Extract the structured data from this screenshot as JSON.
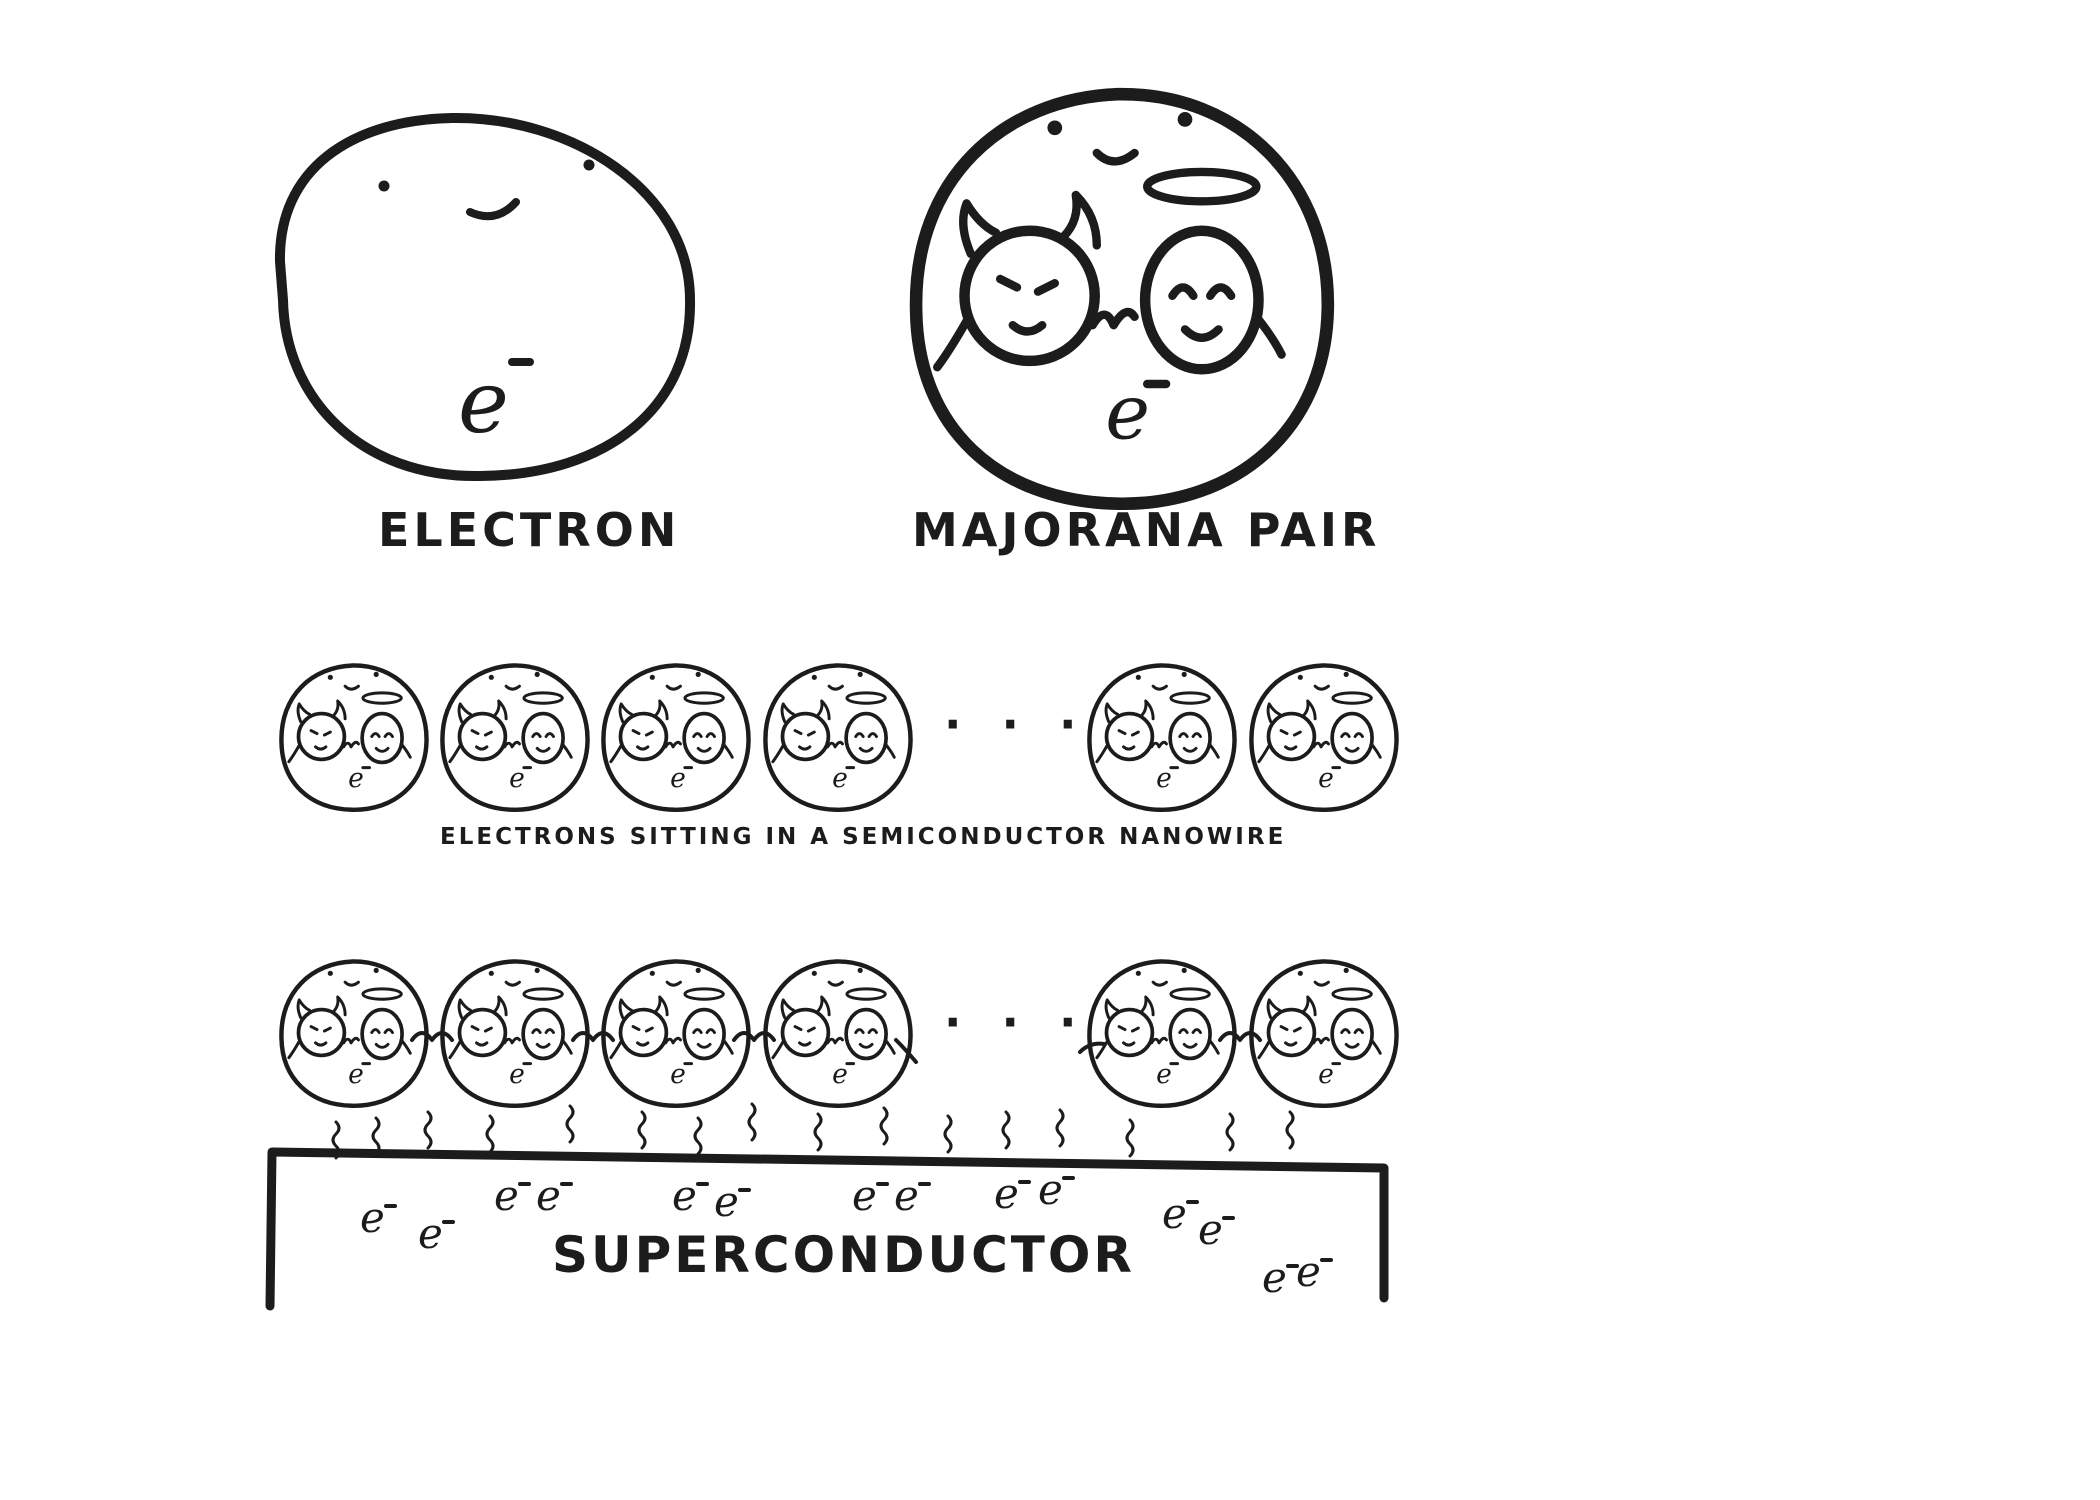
{
  "labels": {
    "electron": "ELECTRON",
    "majorana_pair": "MAJORANA PAIR",
    "nanowire_caption": "ELECTRONS SITTING IN A SEMICONDUCTOR NANOWIRE",
    "superconductor": "SUPERCONDUCTOR",
    "ellipsis": "· · ·"
  },
  "symbols": {
    "electron": "e",
    "charge": "-"
  },
  "colors": {
    "ink": "#1c1c1c",
    "background": "#ffffff"
  }
}
